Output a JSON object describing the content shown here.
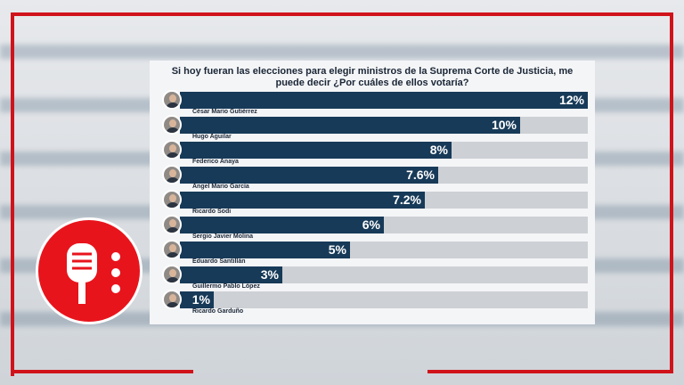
{
  "chart_data": {
    "type": "bar",
    "orientation": "horizontal",
    "title": "Si hoy fueran las elecciones para elegir ministros de la Suprema Corte de Justicia, me puede decir ¿Por cuáles de ellos votaría?",
    "categories": [
      "César Mario Gutiérrez",
      "Hugo Aguilar",
      "Federico Anaya",
      "Ángel Mario García",
      "Ricardo Sodi",
      "Sergio Javier Molina",
      "Eduardo Santillán",
      "Guillermo Pablo López",
      "Ricardo Garduño"
    ],
    "values": [
      12,
      10,
      8,
      7.6,
      7.2,
      6,
      5,
      3,
      1
    ],
    "labels": [
      "12%",
      "10%",
      "8%",
      "7.6%",
      "7.2%",
      "6%",
      "5%",
      "3%",
      "1%"
    ],
    "xlim": [
      0,
      12
    ],
    "bar_color": "#173a58",
    "track_color": "#cdd0d4"
  },
  "brand": {
    "accent": "#d0131b",
    "logo_icon": "microphone-icon"
  }
}
